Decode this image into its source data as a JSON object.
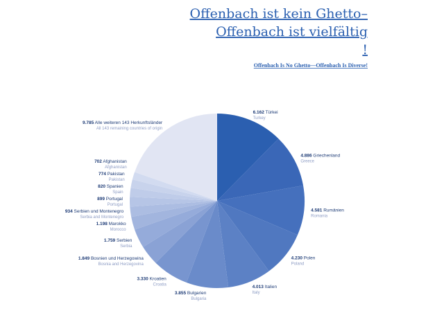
{
  "chart_data": {
    "type": "pie",
    "title_lines": [
      "Offenbach ist kein Ghetto–",
      "Offenbach ist vielfältig",
      "!"
    ],
    "subtitle": "Offenbach Is No Ghetto—Offenbach Is Diverse!",
    "categories": [
      "Türkei",
      "Griechenland",
      "Rumänien",
      "Polen",
      "Italien",
      "Bulgarien",
      "Kroatien",
      "Bosnien und Herzegowina",
      "Serbien",
      "Marokko",
      "Serbien und Montenegro",
      "Portugal",
      "Spanien",
      "Pakistan",
      "Afghanistan",
      "Alle weiteren 143 Herkunftsländer"
    ],
    "categories_en": [
      "Turkey",
      "Greece",
      "Romania",
      "Poland",
      "Italy",
      "Bulgaria",
      "Croatia",
      "Bosnia and Herzegovina",
      "Serbia",
      "Morocco",
      "Serbia and Montenegro",
      "Portugal",
      "Spain",
      "Pakistan",
      "Afghanistan",
      "All 143 remaining countries of origin"
    ],
    "values": [
      6162,
      4886,
      4581,
      4230,
      4013,
      3855,
      3330,
      1849,
      1759,
      1198,
      934,
      899,
      820,
      774,
      702,
      9785
    ],
    "value_labels": [
      "6.162",
      "4.886",
      "4.581",
      "4.230",
      "4.013",
      "3.855",
      "3.330",
      "1.849",
      "1.759",
      "1.198",
      "934",
      "899",
      "820",
      "774",
      "702",
      "9.785"
    ],
    "colors": [
      "#2b5fb0",
      "#3a67b7",
      "#4570bd",
      "#5078c0",
      "#5c81c5",
      "#6a8bca",
      "#7895cf",
      "#8aa2d5",
      "#95abda",
      "#a2b5de",
      "#acbde2",
      "#b6c5e6",
      "#bfcce9",
      "#c8d3ec",
      "#d2dbf0",
      "#e1e5f3"
    ]
  }
}
